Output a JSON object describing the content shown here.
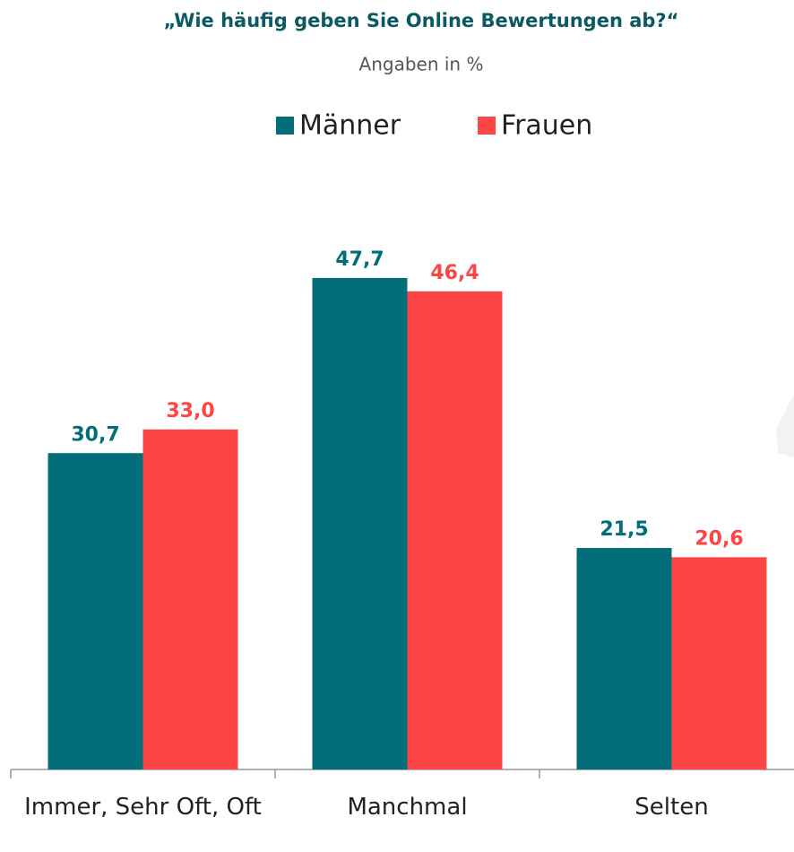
{
  "chart_data": {
    "type": "bar",
    "title": "„Wie häufig geben Sie Online Bewertungen ab?“",
    "subtitle": "Angaben in %",
    "categories": [
      "Immer, Sehr Oft, Oft",
      "Manchmal",
      "Selten"
    ],
    "series": [
      {
        "name": "Männer",
        "color": "#036e7a",
        "values": [
          30.7,
          47.7,
          21.5
        ],
        "value_labels": [
          "30,7",
          "47,7",
          "21,5"
        ]
      },
      {
        "name": "Frauen",
        "color": "#fd4546",
        "values": [
          33.0,
          46.4,
          20.6
        ],
        "value_labels": [
          "33,0",
          "46,4",
          "20,6"
        ]
      }
    ]
  }
}
